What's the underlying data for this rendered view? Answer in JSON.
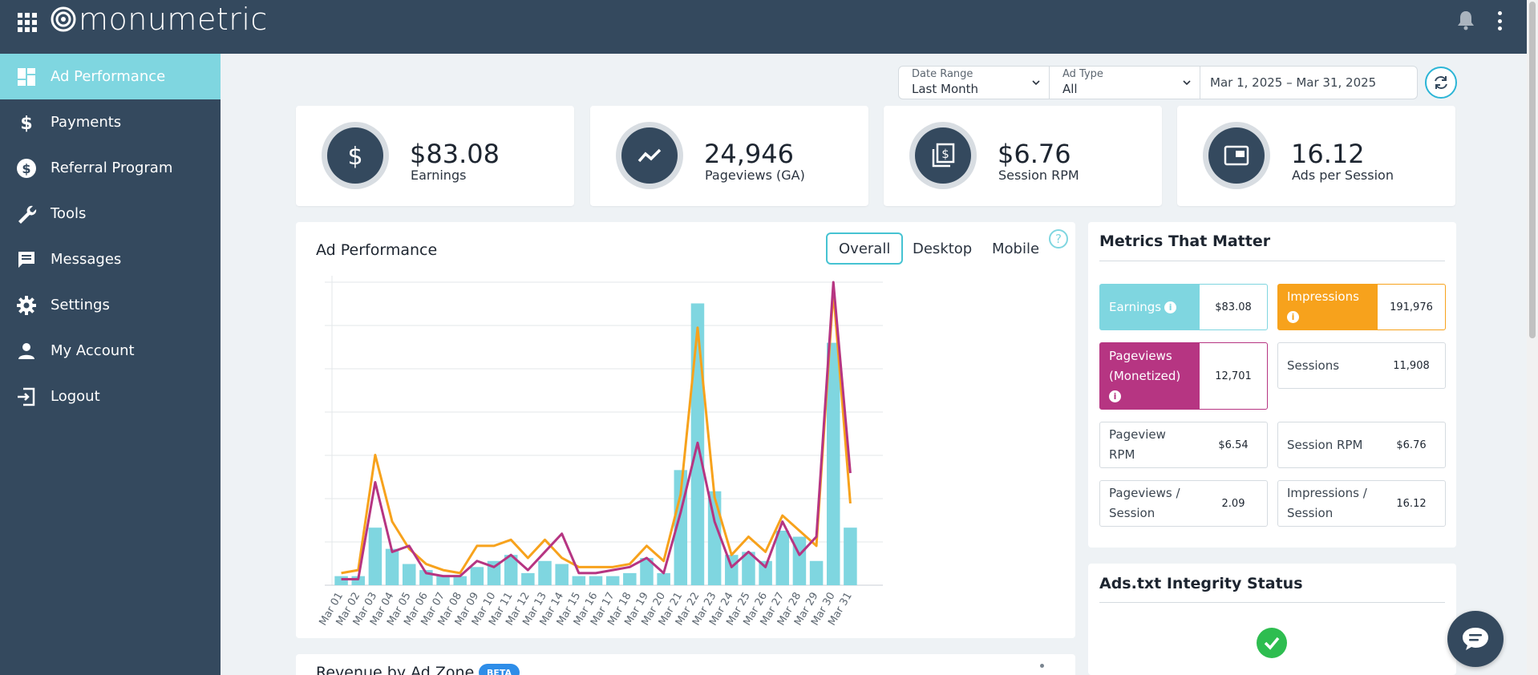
{
  "app": {
    "logo_text": "monumetric",
    "icons": {
      "apps": "apps-grid-icon",
      "bell": "bell-icon",
      "menu": "kebab-menu-icon"
    }
  },
  "sidebar": {
    "items": [
      {
        "label": "Ad Performance",
        "icon": "dashboard-icon",
        "active": true
      },
      {
        "label": "Payments",
        "icon": "dollar-icon"
      },
      {
        "label": "Referral Program",
        "icon": "dollar-circle-icon"
      },
      {
        "label": "Tools",
        "icon": "wrench-icon"
      },
      {
        "label": "Messages",
        "icon": "message-icon"
      },
      {
        "label": "Settings",
        "icon": "gear-icon"
      },
      {
        "label": "My Account",
        "icon": "person-icon"
      },
      {
        "label": "Logout",
        "icon": "logout-icon"
      }
    ]
  },
  "filters": {
    "date_range": {
      "label": "Date Range",
      "value": "Last Month"
    },
    "ad_type": {
      "label": "Ad Type",
      "value": "All"
    },
    "dates": "Mar 1, 2025 – Mar 31, 2025"
  },
  "kpis": [
    {
      "value": "$83.08",
      "label": "Earnings",
      "icon": "dollar-icon"
    },
    {
      "value": "24,946",
      "label": "Pageviews (GA)",
      "icon": "trend-line-icon"
    },
    {
      "value": "$6.76",
      "label": "Session RPM",
      "icon": "stacked-dollar-icon"
    },
    {
      "value": "16.12",
      "label": "Ads per Session",
      "icon": "ad-window-icon"
    }
  ],
  "ad_performance": {
    "title": "Ad Performance",
    "tabs": [
      "Overall",
      "Desktop",
      "Mobile"
    ],
    "active_tab": "Overall",
    "help": "?"
  },
  "chart_data": {
    "type": "bar",
    "categories": [
      "Mar 01",
      "Mar 02",
      "Mar 03",
      "Mar 04",
      "Mar 05",
      "Mar 06",
      "Mar 07",
      "Mar 08",
      "Mar 09",
      "Mar 10",
      "Mar 11",
      "Mar 12",
      "Mar 13",
      "Mar 14",
      "Mar 15",
      "Mar 16",
      "Mar 17",
      "Mar 18",
      "Mar 19",
      "Mar 20",
      "Mar 21",
      "Mar 22",
      "Mar 23",
      "Mar 24",
      "Mar 25",
      "Mar 26",
      "Mar 27",
      "Mar 28",
      "Mar 29",
      "Mar 30",
      "Mar 31"
    ],
    "series": [
      {
        "kind": "bar",
        "color": "#7fd6e0",
        "values": [
          3,
          3,
          19,
          12,
          7,
          5,
          3,
          3,
          6,
          8,
          10,
          4,
          8,
          7,
          3,
          3,
          3,
          4,
          9,
          4,
          38,
          93,
          31,
          10,
          11,
          8,
          18,
          16,
          8,
          80,
          19
        ]
      },
      {
        "kind": "line",
        "color": "#f7a21c",
        "values": [
          4,
          5,
          43,
          21,
          12,
          7,
          5,
          4,
          13,
          13,
          15,
          9,
          15,
          9,
          6,
          6,
          6,
          7,
          13,
          8,
          30,
          85,
          29,
          10,
          16,
          11,
          23,
          18,
          13,
          97,
          27
        ]
      },
      {
        "kind": "line",
        "color": "#b63582",
        "values": [
          2,
          2,
          34,
          11,
          13,
          4,
          3,
          3,
          8,
          6,
          10,
          5,
          11,
          17,
          4,
          4,
          5,
          6,
          9,
          4,
          24,
          47,
          21,
          6,
          11,
          6,
          21,
          10,
          16,
          100,
          37
        ]
      }
    ],
    "ylim": [
      0,
      100
    ],
    "grid": true
  },
  "metrics": {
    "title": "Metrics That Matter",
    "items": [
      {
        "label": "Earnings",
        "value": "$83.08",
        "style": "fill-cyan",
        "info": true
      },
      {
        "label": "Impressions",
        "value": "191,976",
        "style": "fill-orange",
        "info": true
      },
      {
        "label": "Pageviews (Monetized)",
        "value": "12,701",
        "style": "fill-magenta",
        "info": true
      },
      {
        "label": "Sessions",
        "value": "11,908",
        "style": "plain"
      },
      {
        "label": "Pageview RPM",
        "value": "$6.54",
        "style": "plain"
      },
      {
        "label": "Session RPM",
        "value": "$6.76",
        "style": "plain"
      },
      {
        "label": "Pageviews / Session",
        "value": "2.09",
        "style": "plain"
      },
      {
        "label": "Impressions / Session",
        "value": "16.12",
        "style": "plain"
      }
    ],
    "info_glyph": "i"
  },
  "ads_txt": {
    "title": "Ads.txt Integrity Status",
    "status": "check-circle-icon"
  },
  "revenue": {
    "title": "Revenue by Ad Zone",
    "badge": "BETA"
  },
  "colors": {
    "navy": "#34495e",
    "cyan": "#7fd6e0",
    "orange": "#f7a21c",
    "magenta": "#b63582",
    "success": "#2ebd50"
  }
}
